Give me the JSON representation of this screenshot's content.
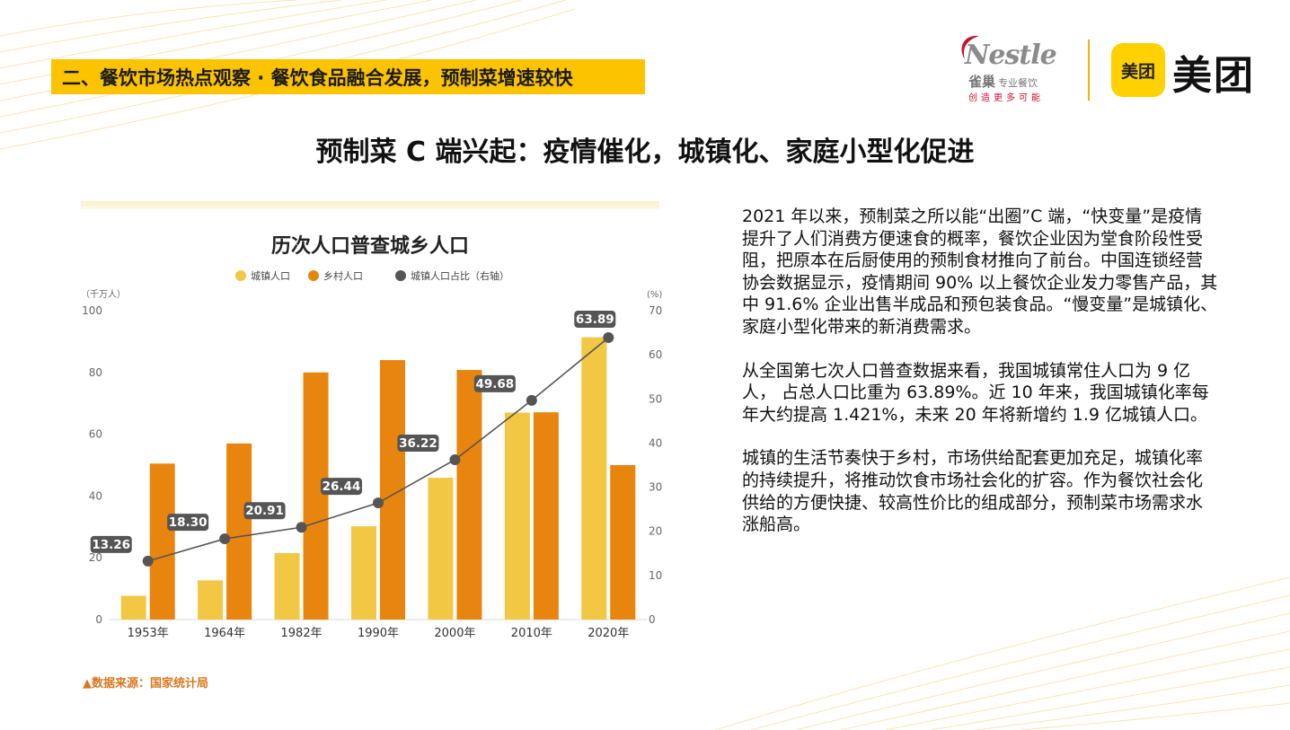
{
  "section_banner": "二、餐饮市场热点观察 · 餐饮食品融合发展，预制菜增速较快",
  "logos": {
    "nestle_word": "Nestle",
    "nestle_cn": "雀巢",
    "nestle_sub": "专业餐饮",
    "nestle_slogan": "创造更多可能",
    "meituan_badge": "美团",
    "meituan_word": "美团"
  },
  "main_title": "预制菜 C 端兴起：疫情催化，城镇化、家庭小型化促进",
  "chart_data": {
    "type": "bar",
    "title": "历次人口普查城乡人口",
    "categories": [
      "1953年",
      "1964年",
      "1982年",
      "1990年",
      "2000年",
      "2010年",
      "2020年"
    ],
    "series": [
      {
        "name": "城镇人口",
        "values": [
          7.7,
          12.7,
          21.5,
          30.2,
          45.9,
          67.0,
          91.4
        ],
        "color": "#f2c744",
        "axis": "left",
        "kind": "bar"
      },
      {
        "name": "乡村人口",
        "values": [
          50.5,
          57.0,
          80.0,
          84.0,
          80.8,
          67.1,
          50.0
        ],
        "color": "#e8850e",
        "axis": "left",
        "kind": "bar"
      },
      {
        "name": "城镇人口占比（右轴）",
        "values": [
          13.26,
          18.3,
          20.91,
          26.44,
          36.22,
          49.68,
          63.89
        ],
        "data_labels": [
          "13.26",
          "18.30",
          "20.91",
          "26.44",
          "36.22",
          "49.68",
          "63.89"
        ],
        "color": "#555555",
        "axis": "right",
        "kind": "line"
      }
    ],
    "y_left": {
      "unit": "（千万人）",
      "min": 0,
      "max": 100,
      "ticks": [
        "0",
        "20",
        "40",
        "60",
        "80",
        "100"
      ]
    },
    "y_right": {
      "unit": "(%)",
      "min": 0,
      "max": 70,
      "ticks": [
        "0",
        "10",
        "20",
        "30",
        "40",
        "50",
        "60",
        "70"
      ]
    },
    "legend_position": "top-center",
    "grid": false
  },
  "source": "▲数据来源：国家统计局",
  "paragraphs": [
    "2021 年以来，预制菜之所以能“出圈”C 端，“快变量”是疫情提升了人们消费方便速食的概率，餐饮企业因为堂食阶段性受阻，把原本在后厨使用的预制食材推向了前台。中国连锁经营协会数据显示，疫情期间 90% 以上餐饮企业发力零售产品，其中 91.6% 企业出售半成品和预包装食品。“慢变量”是城镇化、家庭小型化带来的新消费需求。",
    "从全国第七次人口普查数据来看，我国城镇常住人口为 9 亿人， 占总人口比重为 63.89%。近 10 年来，我国城镇化率每年大约提高 1.421%，未来 20 年将新增约 1.9 亿城镇人口。",
    "城镇的生活节奏快于乡村，市场供给配套更加充足，城镇化率的持续提升，将推动饮食市场社会化的扩容。作为餐饮社会化供给的方便快捷、较高性价比的组成部分，预制菜市场需求水涨船高。"
  ]
}
